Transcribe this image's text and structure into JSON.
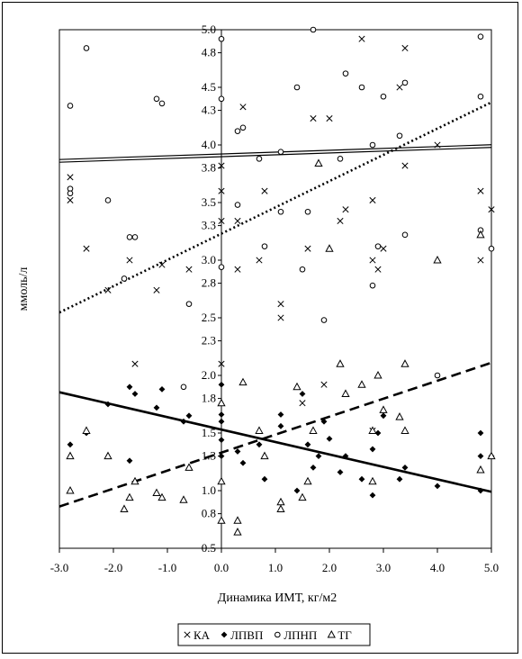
{
  "chart_data": {
    "type": "scatter",
    "title": "",
    "xlabel": "Динамика ИМТ, кг/м2",
    "ylabel": "ммоль/л",
    "xlim": [
      -3.0,
      5.0
    ],
    "ylim": [
      0.5,
      5.0
    ],
    "x_ticks": [
      "-3.0",
      "-2.0",
      "-1.0",
      "0.0",
      "1.0",
      "2.0",
      "3.0",
      "4.0",
      "5.0"
    ],
    "y_ticks": [
      "0.5",
      "0.8",
      "1.0",
      "1.3",
      "1.5",
      "1.8",
      "2.0",
      "2.3",
      "2.5",
      "2.8",
      "3.0",
      "3.3",
      "3.5",
      "3.8",
      "4.0",
      "4.3",
      "4.5",
      "4.8",
      "5.0"
    ],
    "grid": false,
    "legend_position": "bottom",
    "series": [
      {
        "name": "КА",
        "marker": "x",
        "points": [
          [
            -2.8,
            3.72
          ],
          [
            -2.8,
            3.52
          ],
          [
            -2.5,
            3.1
          ],
          [
            -2.1,
            2.74
          ],
          [
            -1.7,
            3.0
          ],
          [
            -1.6,
            2.1
          ],
          [
            -1.2,
            2.74
          ],
          [
            -1.1,
            2.96
          ],
          [
            -0.6,
            2.92
          ],
          [
            0.0,
            3.82
          ],
          [
            0.0,
            3.6
          ],
          [
            0.0,
            3.34
          ],
          [
            0.0,
            2.1
          ],
          [
            0.3,
            3.34
          ],
          [
            0.3,
            2.92
          ],
          [
            0.4,
            4.33
          ],
          [
            0.7,
            3.0
          ],
          [
            0.8,
            3.6
          ],
          [
            1.1,
            2.62
          ],
          [
            1.1,
            2.5
          ],
          [
            1.6,
            3.1
          ],
          [
            1.7,
            4.23
          ],
          [
            2.0,
            4.23
          ],
          [
            2.2,
            3.34
          ],
          [
            2.3,
            3.44
          ],
          [
            2.6,
            4.92
          ],
          [
            2.8,
            3.52
          ],
          [
            2.8,
            3.0
          ],
          [
            2.9,
            2.92
          ],
          [
            3.0,
            3.1
          ],
          [
            3.3,
            4.5
          ],
          [
            3.4,
            4.84
          ],
          [
            3.4,
            3.82
          ],
          [
            4.0,
            4.0
          ],
          [
            4.8,
            3.6
          ],
          [
            4.8,
            3.0
          ],
          [
            5.0,
            3.44
          ],
          [
            1.5,
            1.76
          ],
          [
            1.9,
            1.92
          ],
          [
            2.8,
            1.52
          ]
        ]
      },
      {
        "name": "ЛПВП",
        "marker": "diamond",
        "points": [
          [
            -2.8,
            1.4
          ],
          [
            -2.5,
            1.5
          ],
          [
            -2.1,
            1.75
          ],
          [
            -1.7,
            1.9
          ],
          [
            -1.7,
            1.26
          ],
          [
            -1.6,
            1.84
          ],
          [
            -1.2,
            1.72
          ],
          [
            -1.1,
            1.88
          ],
          [
            -0.7,
            1.6
          ],
          [
            -0.6,
            1.65
          ],
          [
            0.0,
            1.92
          ],
          [
            0.0,
            1.66
          ],
          [
            0.0,
            1.6
          ],
          [
            0.0,
            1.44
          ],
          [
            0.0,
            1.3
          ],
          [
            0.3,
            1.34
          ],
          [
            0.4,
            1.24
          ],
          [
            0.7,
            1.4
          ],
          [
            0.8,
            1.1
          ],
          [
            1.1,
            1.66
          ],
          [
            1.1,
            1.56
          ],
          [
            1.4,
            1.0
          ],
          [
            1.5,
            1.84
          ],
          [
            1.6,
            1.4
          ],
          [
            1.7,
            1.2
          ],
          [
            1.8,
            1.3
          ],
          [
            1.9,
            1.6
          ],
          [
            2.0,
            1.45
          ],
          [
            2.2,
            1.16
          ],
          [
            2.3,
            1.3
          ],
          [
            2.6,
            1.1
          ],
          [
            2.8,
            0.96
          ],
          [
            2.8,
            1.36
          ],
          [
            2.9,
            1.5
          ],
          [
            3.0,
            1.65
          ],
          [
            3.3,
            1.1
          ],
          [
            3.4,
            1.2
          ],
          [
            4.0,
            1.04
          ],
          [
            4.8,
            1.5
          ],
          [
            4.8,
            1.3
          ],
          [
            4.8,
            1.0
          ],
          [
            5.0,
            1.3
          ]
        ]
      },
      {
        "name": "ЛПНП",
        "marker": "circle",
        "points": [
          [
            -2.8,
            4.34
          ],
          [
            -2.8,
            3.62
          ],
          [
            -2.8,
            3.58
          ],
          [
            -2.5,
            4.84
          ],
          [
            -2.1,
            3.52
          ],
          [
            -1.7,
            3.2
          ],
          [
            -1.6,
            3.2
          ],
          [
            -1.8,
            2.84
          ],
          [
            -1.2,
            4.4
          ],
          [
            -1.1,
            4.36
          ],
          [
            -0.7,
            1.9
          ],
          [
            -0.6,
            2.62
          ],
          [
            0.0,
            4.92
          ],
          [
            0.0,
            4.4
          ],
          [
            0.0,
            2.94
          ],
          [
            0.3,
            4.12
          ],
          [
            0.3,
            3.48
          ],
          [
            0.4,
            4.15
          ],
          [
            0.7,
            3.88
          ],
          [
            0.8,
            3.12
          ],
          [
            1.1,
            3.94
          ],
          [
            1.1,
            3.42
          ],
          [
            1.4,
            4.5
          ],
          [
            1.5,
            2.92
          ],
          [
            1.6,
            3.42
          ],
          [
            1.7,
            5.0
          ],
          [
            1.9,
            2.48
          ],
          [
            2.2,
            3.88
          ],
          [
            2.3,
            4.62
          ],
          [
            2.6,
            4.5
          ],
          [
            2.8,
            4.0
          ],
          [
            2.8,
            2.78
          ],
          [
            2.9,
            3.12
          ],
          [
            3.0,
            4.42
          ],
          [
            3.3,
            4.08
          ],
          [
            3.4,
            4.54
          ],
          [
            3.4,
            3.22
          ],
          [
            4.0,
            2.0
          ],
          [
            4.8,
            4.94
          ],
          [
            4.8,
            4.42
          ],
          [
            4.8,
            3.26
          ],
          [
            5.0,
            3.1
          ]
        ]
      },
      {
        "name": "ТГ",
        "marker": "triangle",
        "points": [
          [
            -2.8,
            1.0
          ],
          [
            -2.8,
            1.3
          ],
          [
            -2.5,
            1.52
          ],
          [
            -2.1,
            1.3
          ],
          [
            -1.8,
            0.84
          ],
          [
            -1.7,
            0.94
          ],
          [
            -1.6,
            1.08
          ],
          [
            -1.2,
            0.98
          ],
          [
            -1.1,
            0.94
          ],
          [
            -0.7,
            0.92
          ],
          [
            -0.6,
            1.2
          ],
          [
            0.0,
            1.76
          ],
          [
            0.0,
            1.08
          ],
          [
            0.0,
            0.74
          ],
          [
            0.3,
            0.74
          ],
          [
            0.3,
            0.64
          ],
          [
            0.4,
            1.94
          ],
          [
            0.7,
            1.52
          ],
          [
            0.8,
            1.3
          ],
          [
            1.1,
            0.9
          ],
          [
            1.1,
            0.84
          ],
          [
            1.4,
            1.9
          ],
          [
            1.5,
            0.94
          ],
          [
            1.6,
            1.08
          ],
          [
            1.7,
            1.52
          ],
          [
            1.8,
            3.84
          ],
          [
            2.0,
            3.1
          ],
          [
            2.2,
            2.1
          ],
          [
            2.3,
            1.84
          ],
          [
            2.6,
            1.92
          ],
          [
            2.8,
            1.52
          ],
          [
            2.8,
            1.08
          ],
          [
            2.9,
            2.0
          ],
          [
            3.0,
            1.7
          ],
          [
            3.3,
            1.64
          ],
          [
            3.4,
            1.52
          ],
          [
            3.4,
            2.1
          ],
          [
            4.0,
            3.0
          ],
          [
            4.8,
            3.22
          ],
          [
            4.8,
            1.18
          ],
          [
            5.0,
            1.3
          ]
        ]
      }
    ],
    "trendlines": [
      {
        "series": "КА",
        "style": "double",
        "slope": 0.016,
        "intercept": 3.91
      },
      {
        "series": "ЛПВП",
        "style": "solid",
        "slope": -0.108,
        "intercept": 1.53
      },
      {
        "series": "ЛПНП",
        "style": "dotted",
        "slope": 0.228,
        "intercept": 3.23
      },
      {
        "series": "ТГ",
        "style": "dashed",
        "slope": 0.156,
        "intercept": 1.33
      }
    ]
  }
}
